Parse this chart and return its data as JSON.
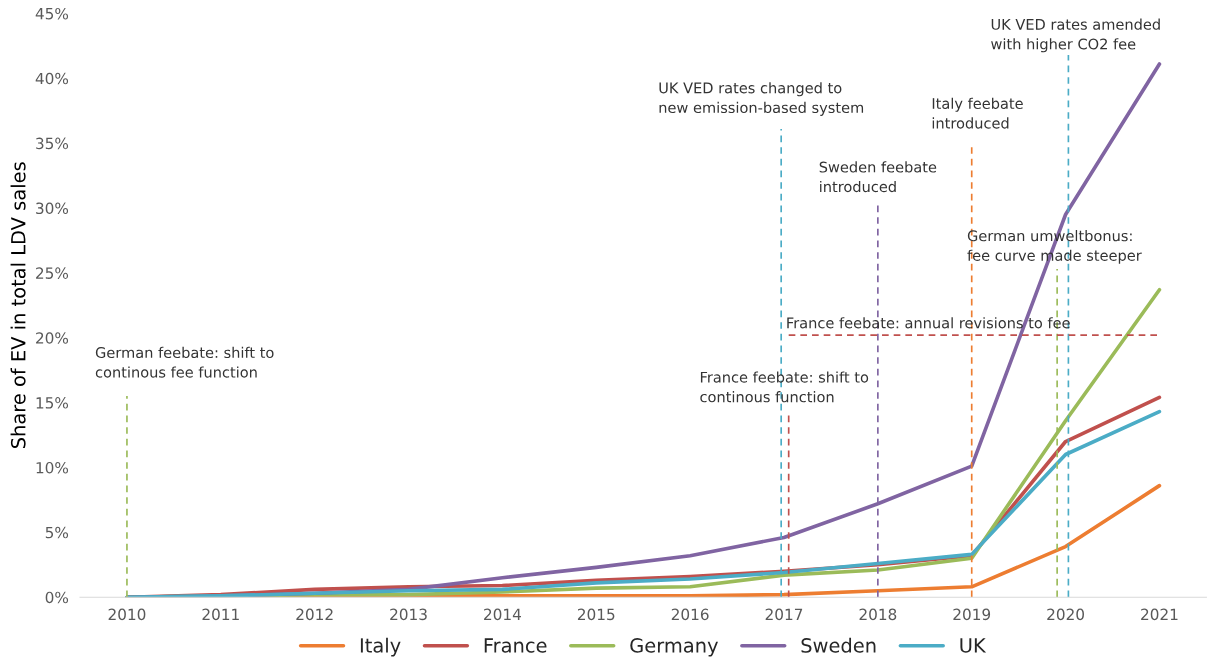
{
  "chart_data": {
    "type": "line",
    "ylabel": "Share of EV in total LDV sales",
    "x": [
      2010,
      2011,
      2012,
      2013,
      2014,
      2015,
      2016,
      2017,
      2018,
      2019,
      2020,
      2021
    ],
    "series": [
      {
        "name": "Italy",
        "color": "#ed7d31",
        "values": [
          0,
          0.0,
          0.1,
          0.1,
          0.1,
          0.1,
          0.1,
          0.2,
          0.5,
          0.8,
          3.9,
          8.6
        ]
      },
      {
        "name": "France",
        "color": "#c0504d",
        "values": [
          0,
          0.2,
          0.6,
          0.8,
          0.9,
          1.3,
          1.6,
          2.0,
          2.5,
          3.2,
          12.0,
          15.4
        ]
      },
      {
        "name": "Germany",
        "color": "#9bbb59",
        "values": [
          0,
          0.1,
          0.2,
          0.2,
          0.4,
          0.7,
          0.8,
          1.7,
          2.1,
          3.0,
          13.6,
          23.7
        ]
      },
      {
        "name": "Sweden",
        "color": "#8064a2",
        "values": [
          0,
          0.1,
          0.3,
          0.6,
          1.5,
          2.3,
          3.2,
          4.6,
          7.2,
          10.1,
          29.5,
          41.1
        ]
      },
      {
        "name": "UK",
        "color": "#4bacc6",
        "values": [
          0,
          0.1,
          0.3,
          0.5,
          0.6,
          1.1,
          1.4,
          1.9,
          2.6,
          3.3,
          11.0,
          14.3
        ]
      }
    ],
    "xlim": [
      2009.5,
      2021.5
    ],
    "xticks": [
      2010,
      2011,
      2012,
      2013,
      2014,
      2015,
      2016,
      2017,
      2018,
      2019,
      2020,
      2021
    ],
    "ylim": [
      0,
      45
    ],
    "yticks": [
      {
        "value": 0,
        "label": "0%"
      },
      {
        "value": 5,
        "label": "5%"
      },
      {
        "value": 10,
        "label": "10%"
      },
      {
        "value": 15,
        "label": "15%"
      },
      {
        "value": 20,
        "label": "20%"
      },
      {
        "value": 25,
        "label": "25%"
      },
      {
        "value": 30,
        "label": "30%"
      },
      {
        "value": 35,
        "label": "35%"
      },
      {
        "value": 40,
        "label": "40%"
      },
      {
        "value": 45,
        "label": "45%"
      }
    ],
    "ref_lines": [
      {
        "axis": "x",
        "value": 2010,
        "label": "German feebate: shift to\ncontinous fee function",
        "color": "#9bbb59",
        "line_style": "dashed"
      },
      {
        "axis": "x",
        "value": 2016.97,
        "label": "UK VED rates changed to\nnew emission-based system",
        "color": "#4bacc6",
        "line_style": "dashed"
      },
      {
        "axis": "x",
        "value": 2017.05,
        "label": "France feebate: shift to\ncontinous function",
        "color": "#c0504d",
        "line_style": "dashed"
      },
      {
        "axis": "x",
        "value": 2018,
        "label": "Sweden feebate\nintroduced",
        "color": "#8064a2",
        "line_style": "dashed"
      },
      {
        "axis": "x",
        "value": 2019,
        "label": "Italy feebate\nintroduced",
        "color": "#ed7d31",
        "line_style": "dashed"
      },
      {
        "axis": "x",
        "value": 2019.91,
        "label": "German umweltbonus:\nfee curve made steeper",
        "color": "#9bbb59",
        "line_style": "dashed"
      },
      {
        "axis": "x",
        "value": 2020.03,
        "label": "UK VED rates amended\nwith higher CO2 fee",
        "color": "#4bacc6",
        "line_style": "dashed"
      },
      {
        "axis": "y",
        "value": 20.2,
        "label": "France feebate: annual revisions to fee",
        "color": "#c0504d",
        "line_style": "dashed"
      }
    ],
    "grid": false,
    "legend": "bottom",
    "marker": "none",
    "line_style": "solid"
  }
}
